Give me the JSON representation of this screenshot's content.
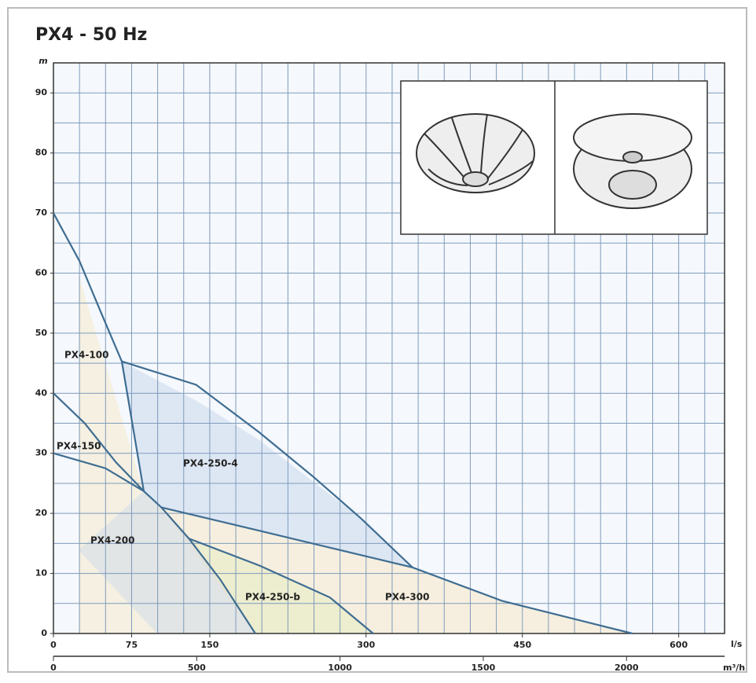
{
  "chart_data": {
    "type": "line",
    "title": "PX4 - 50 Hz",
    "ylabel": "m",
    "xlabel": "l/s",
    "x2label": "m³/h",
    "xlim": [
      0,
      644
    ],
    "xticks": [
      0,
      75,
      150,
      300,
      450,
      600
    ],
    "x2lim": [
      0,
      2342
    ],
    "x2ticks": [
      0,
      500,
      1000,
      1500,
      2000
    ],
    "ylim": [
      0,
      95
    ],
    "yticks": [
      0,
      10,
      20,
      30,
      40,
      50,
      60,
      70,
      80,
      90
    ],
    "x_gridlines": [
      0,
      25,
      50,
      75,
      100,
      125,
      150,
      175,
      200,
      225,
      250,
      275,
      300,
      325,
      350,
      375,
      400,
      425,
      450,
      475,
      500,
      525,
      550,
      575,
      600,
      625
    ],
    "y_gridlines": [
      0,
      5,
      10,
      15,
      20,
      25,
      30,
      35,
      40,
      45,
      50,
      55,
      60,
      65,
      70,
      75,
      80,
      85,
      90
    ],
    "grid": true,
    "series": [
      {
        "name": "PX4-100",
        "color": "#3f6d92",
        "x": [
          0,
          25,
          46.7,
          65.6,
          86.7
        ],
        "values": [
          70,
          62,
          53,
          45.3,
          23.7
        ]
      },
      {
        "name": "PX4-150",
        "color": "#3f6d92",
        "x": [
          0,
          30,
          60,
          86.7
        ],
        "values": [
          40,
          35,
          28.5,
          23.7
        ]
      },
      {
        "name": "PX4-200",
        "color": "#3f6d92",
        "x": [
          0,
          50,
          86.7,
          103.5,
          130,
          160,
          193.7
        ],
        "values": [
          30,
          27.5,
          23.7,
          21,
          15.8,
          9,
          0
        ]
      },
      {
        "name": "PX4-250-4",
        "color": "#3f6d92",
        "x": [
          65.6,
          137,
          197.4,
          250,
          295.5,
          344.5
        ],
        "values": [
          45.3,
          41.4,
          33.5,
          26,
          19.1,
          11
        ]
      },
      {
        "name": "PX4-250-b",
        "color": "#3f6d92",
        "x": [
          130,
          197.8,
          265.3,
          306.8
        ],
        "values": [
          15.8,
          11.3,
          6,
          0
        ]
      },
      {
        "name": "PX4-300",
        "color": "#3f6d92",
        "x": [
          103.5,
          197.8,
          344.5,
          431,
          555.5
        ],
        "values": [
          21,
          17.1,
          11,
          5.4,
          0
        ]
      }
    ]
  }
}
